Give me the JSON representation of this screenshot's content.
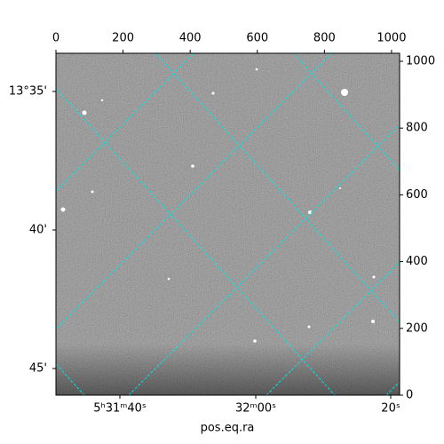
{
  "chart_data": {
    "type": "image",
    "xlabel": "pos.eq.ra",
    "xlim": [
      0,
      1024
    ],
    "xticks": [
      0,
      200,
      400,
      600,
      800,
      1000
    ],
    "ylim": [
      0,
      1024
    ],
    "yticks": [
      0,
      200,
      400,
      600,
      800,
      1000
    ],
    "ra_tick_labels": [
      "5ʰ31ᵐ40ˢ",
      "32ᵐ00ˢ",
      "20ˢ"
    ],
    "dec_tick_labels": [
      "13°35'",
      "40'",
      "45'"
    ],
    "grid_color": "#00e5e5"
  }
}
